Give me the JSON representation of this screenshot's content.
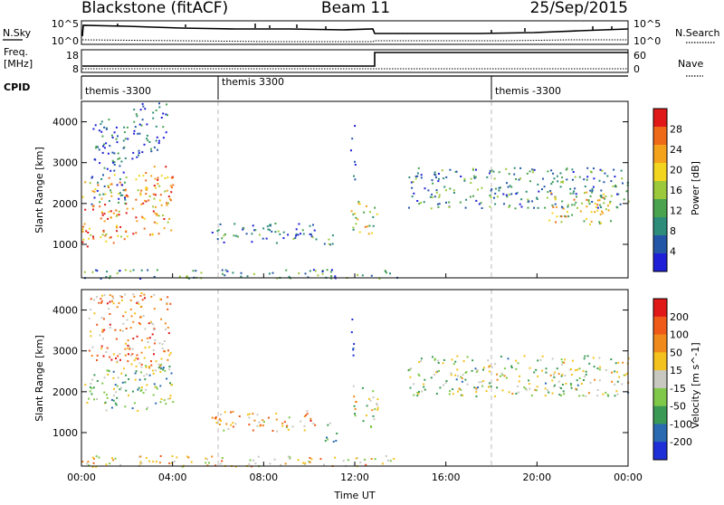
{
  "header": {
    "station": "Blackstone (fitACF)",
    "beam": "Beam 11",
    "date": "25/Sep/2015"
  },
  "top_panel": {
    "nsky_label": "N.Sky",
    "nsky_ticks": [
      "10^5",
      "10^0"
    ],
    "nsearch_label": "N.Search",
    "nsearch_ticks": [
      "10^5",
      "10^0"
    ],
    "freq_label": "Freq.",
    "freq_unit": "[MHz]",
    "freq_ticks": [
      "18",
      "8"
    ],
    "nave_label": "Nave",
    "nave_ticks": [
      "60",
      "0"
    ],
    "cpid_label": "CPID",
    "cpid_segments": [
      {
        "name": "themis -3300",
        "start_hour": 0
      },
      {
        "name": "themis 3300",
        "start_hour": 6
      },
      {
        "name": "themis -3300",
        "start_hour": 18
      }
    ]
  },
  "chart_data": [
    {
      "type": "heatmap",
      "title": "Power",
      "xlabel": "Time UT",
      "ylabel": "Slant Range [km]",
      "x_ticks": [
        "00:00",
        "04:00",
        "08:00",
        "12:00",
        "16:00",
        "20:00",
        "00:00"
      ],
      "y_ticks": [
        "1000",
        "2000",
        "3000",
        "4000"
      ],
      "xlim_hours": [
        0,
        24
      ],
      "ylim_km": [
        180,
        4500
      ],
      "colorbar_label": "Power [dB]",
      "colorbar_ticks": [
        "4",
        "8",
        "12",
        "16",
        "20",
        "24",
        "28"
      ],
      "colorbar_colors": [
        "#1f1fd8",
        "#2456a8",
        "#2d8c7a",
        "#4aa34e",
        "#9cc83b",
        "#f2d51f",
        "#f4a21c",
        "#ef6a18",
        "#e01818"
      ],
      "scatter_regions": [
        {
          "t0": 0.0,
          "t1": 4.0,
          "r0": 900,
          "r1": 2600,
          "slope": 420,
          "level": 0.75
        },
        {
          "t0": 0.4,
          "t1": 2.0,
          "r0": 2000,
          "r1": 4100,
          "slope": 0,
          "level": 0.2
        },
        {
          "t0": 2.2,
          "t1": 3.8,
          "r0": 3100,
          "r1": 4450,
          "slope": 300,
          "level": 0.15
        },
        {
          "t0": 5.7,
          "t1": 10.4,
          "r0": 1050,
          "r1": 1550,
          "slope": 0,
          "level": 0.25
        },
        {
          "t0": 10.6,
          "t1": 11.1,
          "r0": 850,
          "r1": 1300,
          "slope": 0,
          "level": 0.3
        },
        {
          "t0": 11.8,
          "t1": 13.0,
          "r0": 1350,
          "r1": 2150,
          "slope": -200,
          "level": 0.55
        },
        {
          "t0": 11.8,
          "t1": 12.0,
          "r0": 2600,
          "r1": 4000,
          "slope": 0,
          "level": 0.1
        },
        {
          "t0": 14.3,
          "t1": 24.0,
          "r0": 1900,
          "r1": 2900,
          "slope": 0,
          "level": 0.3
        },
        {
          "t0": 20.5,
          "t1": 23.5,
          "r0": 1500,
          "r1": 2300,
          "slope": 0,
          "level": 0.6
        },
        {
          "t0": 0.0,
          "t1": 14.0,
          "r0": 180,
          "r1": 400,
          "slope": 0,
          "level": 0.3
        }
      ]
    },
    {
      "type": "heatmap",
      "title": "Velocity",
      "xlabel": "Time UT",
      "ylabel": "Slant Range [km]",
      "x_ticks": [
        "00:00",
        "04:00",
        "08:00",
        "12:00",
        "16:00",
        "20:00",
        "00:00"
      ],
      "y_ticks": [
        "1000",
        "2000",
        "3000",
        "4000"
      ],
      "xlim_hours": [
        0,
        24
      ],
      "ylim_km": [
        180,
        4500
      ],
      "colorbar_label": "Velocity [m s^-1]",
      "colorbar_ticks": [
        "200",
        "100",
        "50",
        "15",
        "-15",
        "-50",
        "-100",
        "-200"
      ],
      "colorbar_colors": [
        "#1f2fd8",
        "#2a6ab0",
        "#3a9a55",
        "#7fc84a",
        "#c8c8c0",
        "#f4c21c",
        "#f08a1c",
        "#ef5a18",
        "#e01818"
      ],
      "scatter_regions": [
        {
          "t0": 0.0,
          "t1": 4.0,
          "r0": 1400,
          "r1": 2500,
          "slope": 250,
          "level": 0.4
        },
        {
          "t0": 0.3,
          "t1": 3.9,
          "r0": 2600,
          "r1": 4450,
          "slope": 0,
          "level": 0.7
        },
        {
          "t0": 5.7,
          "t1": 10.4,
          "r0": 1050,
          "r1": 1550,
          "slope": 0,
          "level": 0.65
        },
        {
          "t0": 10.6,
          "t1": 11.2,
          "r0": 750,
          "r1": 1300,
          "slope": 0,
          "level": 0.25
        },
        {
          "t0": 11.8,
          "t1": 13.0,
          "r0": 1300,
          "r1": 2200,
          "slope": -200,
          "level": 0.45
        },
        {
          "t0": 11.8,
          "t1": 12.0,
          "r0": 2700,
          "r1": 4000,
          "slope": 0,
          "level": 0.05
        },
        {
          "t0": 14.3,
          "t1": 24.0,
          "r0": 1900,
          "r1": 2900,
          "slope": 0,
          "level": 0.45
        },
        {
          "t0": 0.0,
          "t1": 14.0,
          "r0": 180,
          "r1": 450,
          "slope": 0,
          "level": 0.6
        }
      ]
    }
  ]
}
